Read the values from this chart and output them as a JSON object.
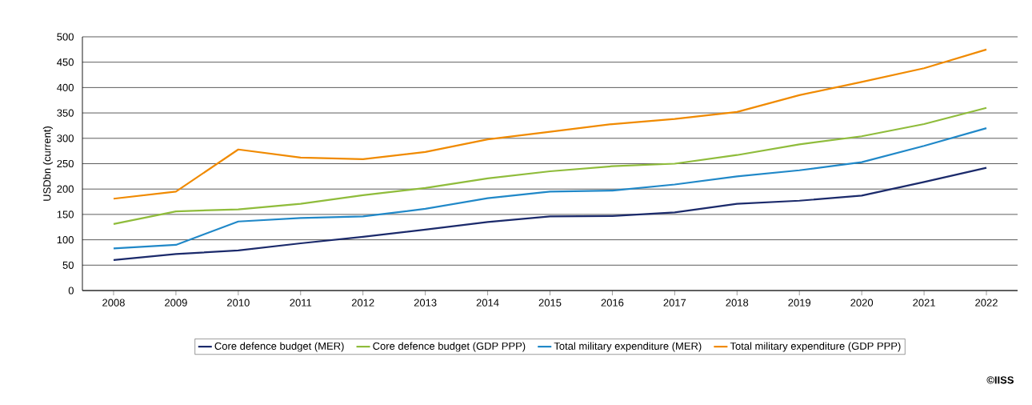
{
  "chart_data": {
    "type": "line",
    "ylabel": "USDbn (current)",
    "categories": [
      "2008",
      "2009",
      "2010",
      "2011",
      "2012",
      "2013",
      "2014",
      "2015",
      "2016",
      "2017",
      "2018",
      "2019",
      "2020",
      "2021",
      "2022"
    ],
    "series": [
      {
        "name": "Core defence budget (MER)",
        "color": "#1b2a6b",
        "values": [
          60,
          72,
          79,
          93,
          106,
          120,
          135,
          146,
          147,
          154,
          171,
          177,
          187,
          214,
          242
        ]
      },
      {
        "name": "Core defence budget (GDP PPP)",
        "color": "#8fbc3b",
        "values": [
          131,
          156,
          160,
          171,
          188,
          202,
          221,
          235,
          245,
          250,
          267,
          288,
          304,
          328,
          360
        ]
      },
      {
        "name": "Total military expenditure (MER)",
        "color": "#2088c8",
        "values": [
          83,
          90,
          136,
          143,
          146,
          161,
          182,
          195,
          197,
          209,
          225,
          237,
          253,
          285,
          320
        ]
      },
      {
        "name": "Total military expenditure (GDP PPP)",
        "color": "#f08a00",
        "values": [
          181,
          195,
          278,
          262,
          259,
          273,
          298,
          313,
          328,
          338,
          352,
          385,
          411,
          438,
          475
        ]
      }
    ],
    "ylim": [
      0,
      500
    ],
    "yticks": [
      0,
      50,
      100,
      150,
      200,
      250,
      300,
      350,
      400,
      450,
      500
    ],
    "grid": "y",
    "legend": "bottom",
    "marker": "none",
    "line_style": "solid",
    "annotations": [
      "©IISS"
    ]
  }
}
